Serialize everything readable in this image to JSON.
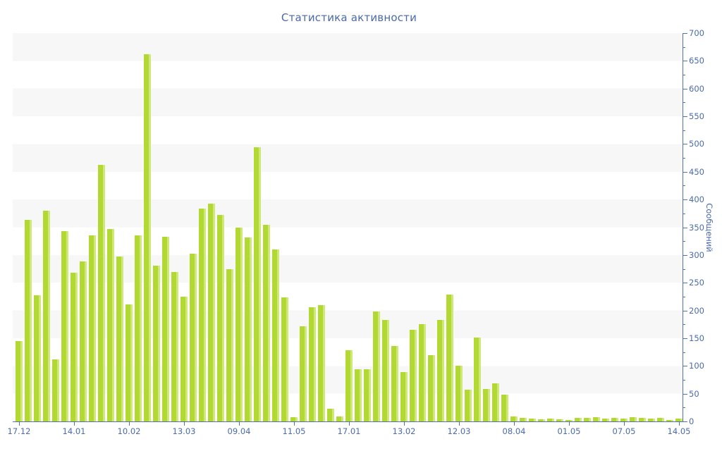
{
  "title": "Статистика активности",
  "chart_data": {
    "type": "bar",
    "title": "Статистика активности",
    "xlabel": "",
    "ylabel": "Сообщений",
    "ylim": [
      0,
      700
    ],
    "y_major_tick_step": 50,
    "y_minor_tick_step": 25,
    "y_axis_side": "right",
    "grid": "alternating horizontal gray bands every 50 units",
    "legend": "none",
    "bar_count": 73,
    "x_tick_labels": [
      "17.12",
      "14.01",
      "10.02",
      "13.03",
      "09.04",
      "11.05",
      "17.01",
      "13.02",
      "12.03",
      "08.04",
      "01.05",
      "07.05",
      "14.05"
    ],
    "x_tick_every_n_bars": 6,
    "values": [
      145,
      363,
      227,
      380,
      112,
      343,
      268,
      289,
      336,
      463,
      347,
      297,
      211,
      335,
      662,
      281,
      333,
      269,
      225,
      302,
      384,
      393,
      372,
      275,
      349,
      331,
      494,
      355,
      310,
      224,
      8,
      171,
      206,
      210,
      23,
      9,
      128,
      94,
      94,
      198,
      183,
      136,
      89,
      165,
      175,
      119,
      183,
      229,
      100,
      57,
      151,
      58,
      69,
      48,
      9,
      6,
      5,
      4,
      5,
      4,
      3,
      6,
      7,
      8,
      5,
      6,
      5,
      8,
      6,
      5,
      6,
      3,
      5
    ]
  },
  "colors": {
    "bar": "#b2d832",
    "bar_highlight": "#cfe87a",
    "axis_line": "#5272ae",
    "tick_label": "#4a6bae",
    "title": "#4a68ad",
    "stripe": "#f7f7f8",
    "background": "#ffffff"
  }
}
